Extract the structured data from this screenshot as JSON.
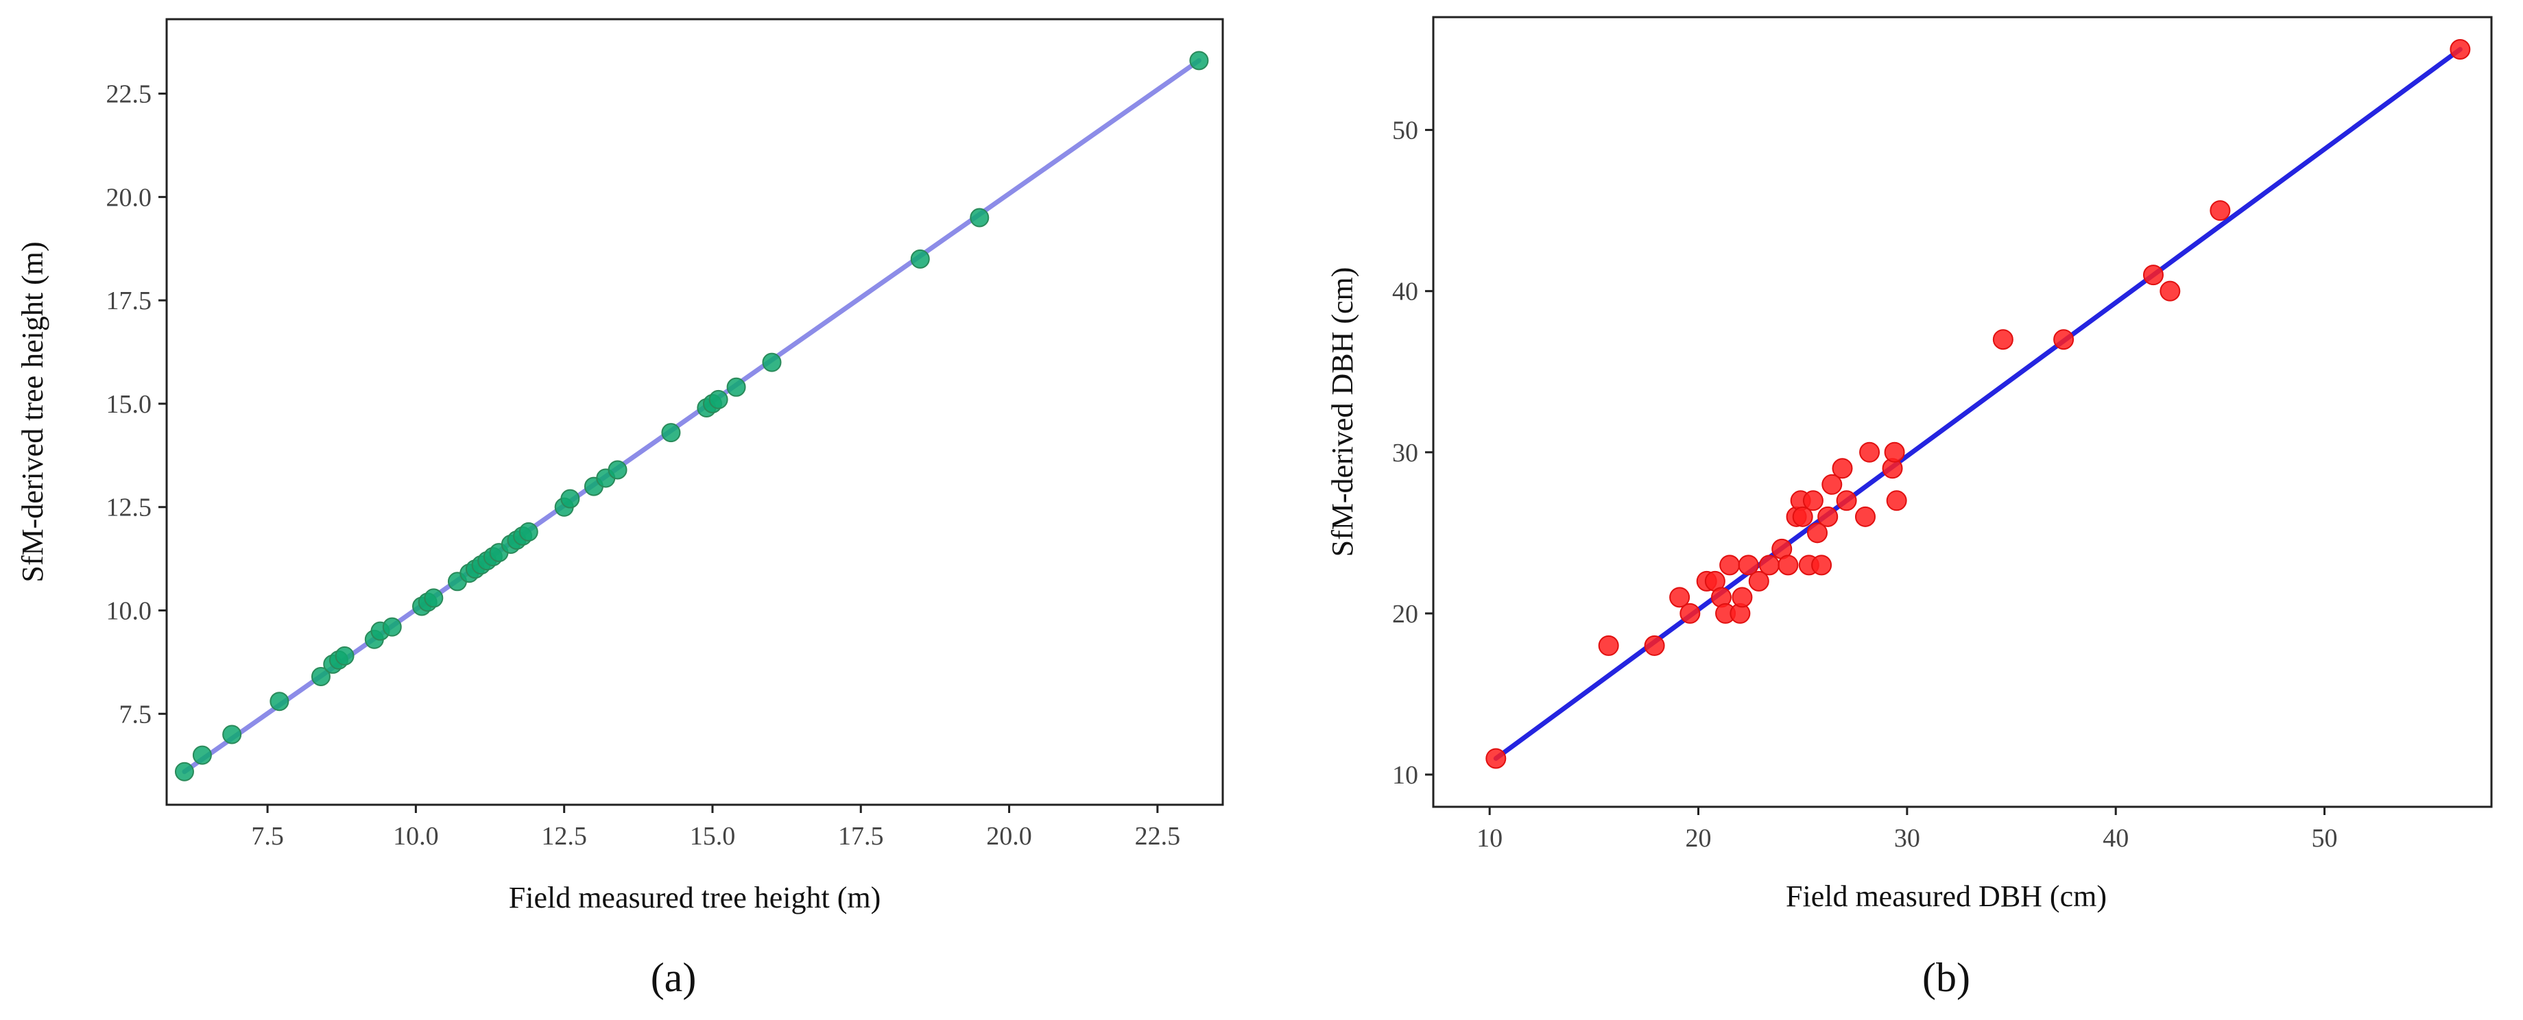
{
  "chart_data": [
    {
      "type": "scatter",
      "panel_label": "(a)",
      "xlabel": "Field measured tree height (m)",
      "ylabel": "SfM-derived tree height (m)",
      "xlim": [
        5.8,
        23.6
      ],
      "ylim": [
        5.3,
        24.3
      ],
      "xticks": [
        7.5,
        10.0,
        12.5,
        15.0,
        17.5,
        20.0,
        22.5
      ],
      "yticks": [
        7.5,
        10.0,
        12.5,
        15.0,
        17.5,
        20.0,
        22.5
      ],
      "tick_format": 1,
      "point_color": "#10a870",
      "point_edge": "#2a8a5a",
      "line_color": "#8c8ce8",
      "fit_line": {
        "x": [
          6.1,
          23.2
        ],
        "y": [
          6.1,
          23.3
        ]
      },
      "points": {
        "x": [
          6.1,
          6.4,
          6.9,
          7.7,
          8.4,
          8.6,
          8.7,
          8.8,
          9.3,
          9.4,
          9.6,
          10.1,
          10.2,
          10.3,
          10.7,
          10.9,
          11.0,
          11.1,
          11.2,
          11.3,
          11.4,
          11.6,
          11.7,
          11.8,
          11.9,
          12.5,
          12.6,
          13.0,
          13.2,
          13.4,
          14.3,
          14.9,
          15.0,
          15.1,
          15.4,
          16.0,
          18.5,
          19.5,
          23.2
        ],
        "y": [
          6.1,
          6.5,
          7.0,
          7.8,
          8.4,
          8.7,
          8.8,
          8.9,
          9.3,
          9.5,
          9.6,
          10.1,
          10.2,
          10.3,
          10.7,
          10.9,
          11.0,
          11.1,
          11.2,
          11.3,
          11.4,
          11.6,
          11.7,
          11.8,
          11.9,
          12.5,
          12.7,
          13.0,
          13.2,
          13.4,
          14.3,
          14.9,
          15.0,
          15.1,
          15.4,
          16.0,
          18.5,
          19.5,
          23.3
        ]
      }
    },
    {
      "type": "scatter",
      "panel_label": "(b)",
      "xlabel": "Field measured DBH (cm)",
      "ylabel": "SfM-derived DBH (cm)",
      "xlim": [
        7.3,
        58.0
      ],
      "ylim": [
        8.0,
        57.0
      ],
      "xticks": [
        10,
        20,
        30,
        40,
        50
      ],
      "yticks": [
        10,
        20,
        30,
        40,
        50
      ],
      "tick_format": 0,
      "point_color": "#ff2020",
      "point_edge": "#e01010",
      "line_color": "#2424e0",
      "fit_line": {
        "x": [
          10.3,
          56.5
        ],
        "y": [
          11.0,
          55.0
        ]
      },
      "points": {
        "x": [
          10.3,
          15.7,
          17.9,
          19.1,
          19.6,
          20.4,
          20.8,
          21.1,
          21.3,
          21.5,
          22.0,
          22.1,
          22.4,
          22.9,
          23.4,
          24.0,
          24.3,
          24.7,
          24.9,
          25.0,
          25.3,
          25.5,
          25.7,
          25.9,
          26.2,
          26.4,
          26.9,
          27.1,
          28.0,
          28.2,
          29.3,
          29.4,
          29.5,
          34.6,
          37.5,
          41.8,
          42.6,
          45.0,
          56.5
        ],
        "y": [
          11.0,
          18.0,
          18.0,
          21.0,
          20.0,
          22.0,
          22.0,
          21.0,
          20.0,
          23.0,
          20.0,
          21.0,
          23.0,
          22.0,
          23.0,
          24.0,
          23.0,
          26.0,
          27.0,
          26.0,
          23.0,
          27.0,
          25.0,
          23.0,
          26.0,
          28.0,
          29.0,
          27.0,
          26.0,
          30.0,
          29.0,
          30.0,
          27.0,
          37.0,
          37.0,
          41.0,
          40.0,
          45.0,
          55.0
        ]
      }
    }
  ]
}
